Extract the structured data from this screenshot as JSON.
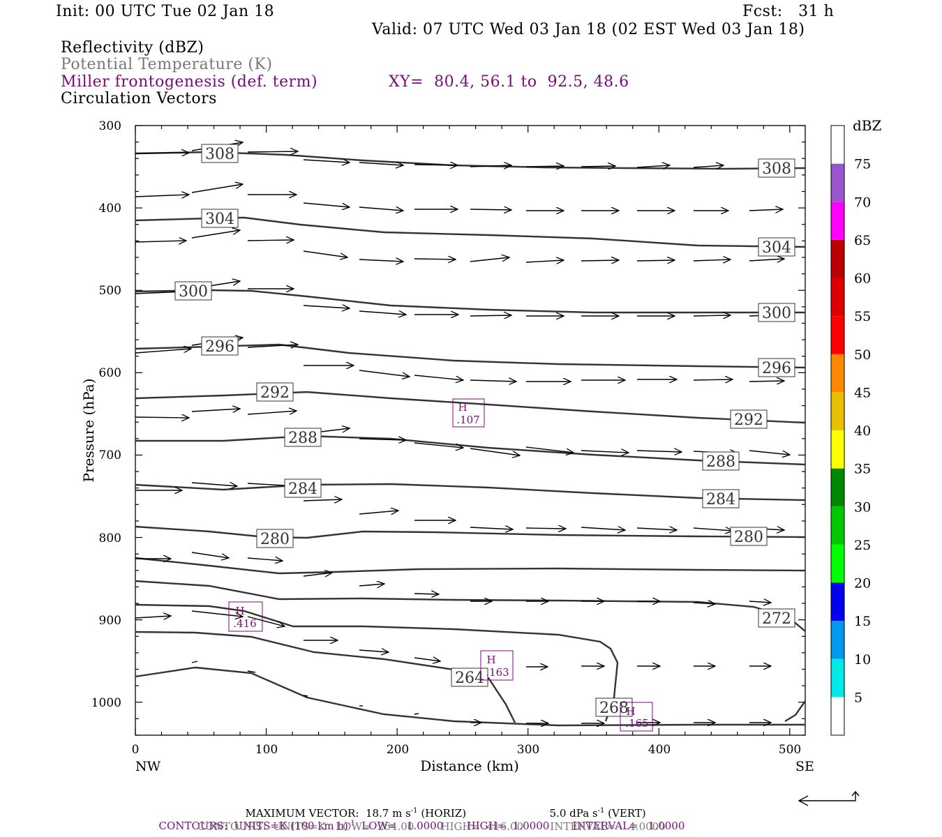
{
  "header": {
    "init": "Init: 00 UTC Tue 02 Jan 18",
    "fcst": "Fcst:   31 h",
    "valid": "Valid: 07 UTC Wed 03 Jan 18 (02 EST Wed 03 Jan 18)",
    "fields": [
      "Reflectivity (dBZ)",
      "Potential Temperature (K)",
      "Miller frontogenesis (def. term)",
      "Circulation Vectors"
    ],
    "xy": "XY=  80.4, 56.1 to  92.5, 48.6"
  },
  "axes": {
    "ylabel": "Pressure (hPa)",
    "xlabel": "Distance (km)",
    "y_ticks": [
      "300",
      "400",
      "500",
      "600",
      "700",
      "800",
      "900",
      "1000"
    ],
    "x_ticks": [
      "0",
      "100",
      "200",
      "300",
      "400",
      "500"
    ],
    "left_end": "NW",
    "right_end": "SE"
  },
  "colorbar": {
    "unit": "dBZ",
    "labels": [
      "5",
      "10",
      "15",
      "20",
      "25",
      "30",
      "35",
      "40",
      "45",
      "50",
      "55",
      "60",
      "65",
      "70",
      "75"
    ],
    "colors": [
      "#ffffff",
      "#00e8e8",
      "#0099ee",
      "#0000ee",
      "#00ff00",
      "#00c800",
      "#008800",
      "#ffff00",
      "#e8c000",
      "#ff8800",
      "#ff0000",
      "#dd0000",
      "#bb0000",
      "#ff00ff",
      "#9955cc",
      "#ffffff"
    ]
  },
  "chart_data": {
    "type": "cross-section",
    "xlim": [
      0,
      512
    ],
    "ylim": [
      300,
      1040
    ],
    "theta_labels": [
      "308",
      "308",
      "304",
      "304",
      "300",
      "300",
      "296",
      "296",
      "292",
      "292",
      "288",
      "288",
      "284",
      "284",
      "280",
      "280",
      "272",
      "264",
      "268"
    ],
    "frontogenesis_labels": [
      {
        "h": "H",
        "v": ".107"
      },
      {
        "h": "H",
        "v": ".416"
      },
      {
        "h": "H",
        "v": ".163"
      },
      {
        "h": "H",
        "v": ".165"
      }
    ]
  },
  "footer": {
    "max_vector_label": "MAXIMUM VECTOR:",
    "max_vector_h": "18.7 m s",
    "max_vector_h_exp": "-1",
    "max_vector_h_unit": "(HORIZ)",
    "max_vector_v": "5.0 dPa s",
    "max_vector_v_exp": "-1",
    "max_vector_v_unit": "(VERT)",
    "contours1_a": "CONTOURS:  UNITS=K (100 km h)",
    "contours1_exp": "-1",
    "contours1_b": "  LOW=   1.0000       HIGH=  1.0000       INTERVAL=   1.0000",
    "contours2": "CONTOURS:  UNITS=K   LOW=  264.00        HIGH=  416.00        INTERVAL=    4.0000"
  }
}
